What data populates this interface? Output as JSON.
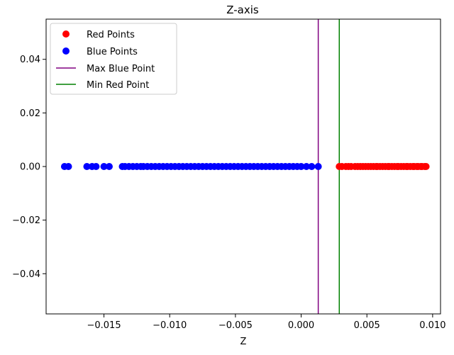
{
  "chart_data": {
    "type": "scatter",
    "title": "Z-axis",
    "xlabel": "Z",
    "ylabel": "",
    "xlim": [
      -0.0194,
      0.0106
    ],
    "ylim": [
      -0.055,
      0.055
    ],
    "xticks": [
      -0.015,
      -0.01,
      -0.005,
      0.0,
      0.005,
      0.01
    ],
    "xtick_labels": [
      "−0.015",
      "−0.010",
      "−0.005",
      "0.000",
      "0.005",
      "0.010"
    ],
    "yticks": [
      -0.04,
      -0.02,
      0.0,
      0.02,
      0.04
    ],
    "ytick_labels": [
      "−0.04",
      "−0.02",
      "0.00",
      "0.02",
      "0.04"
    ],
    "grid": false,
    "legend_position": "top-left",
    "series": [
      {
        "name": "Red Points",
        "kind": "scatter",
        "color": "#ff0000",
        "x": [
          0.0029,
          0.0031,
          0.0034,
          0.0036,
          0.0038,
          0.0041,
          0.0043,
          0.0045,
          0.0047,
          0.0049,
          0.0051,
          0.0053,
          0.0055,
          0.0057,
          0.0058,
          0.006,
          0.0062,
          0.0064,
          0.0066,
          0.0067,
          0.0069,
          0.0071,
          0.0073,
          0.0074,
          0.0076,
          0.0078,
          0.008,
          0.0081,
          0.0083,
          0.0085,
          0.0086,
          0.0088,
          0.0089,
          0.0091,
          0.0092,
          0.0094,
          0.0095
        ],
        "y": [
          0,
          0,
          0,
          0,
          0,
          0,
          0,
          0,
          0,
          0,
          0,
          0,
          0,
          0,
          0,
          0,
          0,
          0,
          0,
          0,
          0,
          0,
          0,
          0,
          0,
          0,
          0,
          0,
          0,
          0,
          0,
          0,
          0,
          0,
          0,
          0,
          0
        ]
      },
      {
        "name": "Blue Points",
        "kind": "scatter",
        "color": "#0000ff",
        "x": [
          -0.018,
          -0.0177,
          -0.0163,
          -0.0159,
          -0.0156,
          -0.015,
          -0.0146,
          -0.0136,
          -0.0134,
          -0.0131,
          -0.0128,
          -0.0125,
          -0.0122,
          -0.012,
          -0.0117,
          -0.0114,
          -0.0111,
          -0.0108,
          -0.0105,
          -0.0102,
          -0.0099,
          -0.0096,
          -0.0093,
          -0.009,
          -0.0087,
          -0.0084,
          -0.0081,
          -0.0078,
          -0.0075,
          -0.0072,
          -0.0069,
          -0.0066,
          -0.0063,
          -0.006,
          -0.0057,
          -0.0054,
          -0.0051,
          -0.0048,
          -0.0045,
          -0.0042,
          -0.0039,
          -0.0036,
          -0.0033,
          -0.003,
          -0.0027,
          -0.0024,
          -0.0021,
          -0.0018,
          -0.0015,
          -0.0012,
          -0.0009,
          -0.0006,
          -0.0003,
          0.0,
          0.0004,
          0.0008,
          0.0013
        ],
        "y": [
          0,
          0,
          0,
          0,
          0,
          0,
          0,
          0,
          0,
          0,
          0,
          0,
          0,
          0,
          0,
          0,
          0,
          0,
          0,
          0,
          0,
          0,
          0,
          0,
          0,
          0,
          0,
          0,
          0,
          0,
          0,
          0,
          0,
          0,
          0,
          0,
          0,
          0,
          0,
          0,
          0,
          0,
          0,
          0,
          0,
          0,
          0,
          0,
          0,
          0,
          0,
          0,
          0,
          0,
          0,
          0,
          0
        ]
      },
      {
        "name": "Max Blue Point",
        "kind": "vline",
        "color": "#800080",
        "x": 0.0013
      },
      {
        "name": "Min Red Point",
        "kind": "vline",
        "color": "#008000",
        "x": 0.0029
      }
    ]
  }
}
